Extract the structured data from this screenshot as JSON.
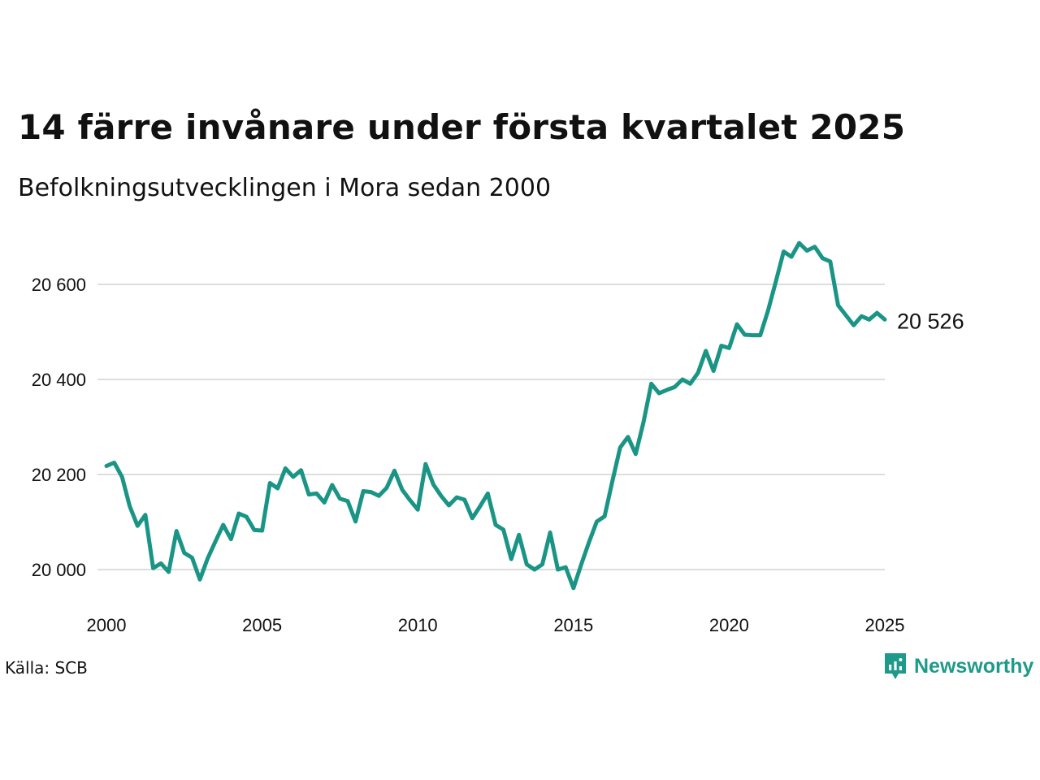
{
  "title": "14 färre invånare under första kvartalet 2025",
  "subtitle": "Befolkningsutvecklingen i Mora sedan 2000",
  "source": "Källa: SCB",
  "brand": {
    "name": "Newsworthy",
    "icon": "newsworthy-logo-icon",
    "color": "#1e9a8a"
  },
  "colors": {
    "line": "#1a9585",
    "grid": "#dddddd"
  },
  "chart_data": {
    "type": "line",
    "title": "14 färre invånare under första kvartalet 2025",
    "subtitle": "Befolkningsutvecklingen i Mora sedan 2000",
    "xlim": [
      2000,
      2025
    ],
    "ylim": [
      19950,
      20710
    ],
    "x_ticks": [
      2000,
      2005,
      2010,
      2015,
      2020,
      2025
    ],
    "x_tick_labels": [
      "2000",
      "2005",
      "2010",
      "2015",
      "2020",
      "2025"
    ],
    "y_ticks": [
      20000,
      20200,
      20400,
      20600
    ],
    "y_tick_labels": [
      "20 000",
      "20 200",
      "20 400",
      "20 600"
    ],
    "grid": "horizontal",
    "end_label": "20 526",
    "series": [
      {
        "x": [
          2000.0,
          2000.25,
          2000.5,
          2000.75,
          2001.0,
          2001.25,
          2001.5,
          2001.75,
          2002.0,
          2002.25,
          2002.5,
          2002.75,
          2003.0,
          2003.25,
          2003.5,
          2003.75,
          2004.0,
          2004.25,
          2004.5,
          2004.75,
          2005.0,
          2005.25,
          2005.5,
          2005.75,
          2006.0,
          2006.25,
          2006.5,
          2006.75,
          2007.0,
          2007.25,
          2007.5,
          2007.75,
          2008.0,
          2008.25,
          2008.5,
          2008.75,
          2009.0,
          2009.25,
          2009.5,
          2009.75,
          2010.0,
          2010.25,
          2010.5,
          2010.75,
          2011.0,
          2011.25,
          2011.5,
          2011.75,
          2012.0,
          2012.25,
          2012.5,
          2012.75,
          2013.0,
          2013.25,
          2013.5,
          2013.75,
          2014.0,
          2014.25,
          2014.5,
          2014.75,
          2015.0,
          2015.25,
          2015.5,
          2015.75,
          2016.0,
          2016.25,
          2016.5,
          2016.75,
          2017.0,
          2017.25,
          2017.5,
          2017.75,
          2018.0,
          2018.25,
          2018.5,
          2018.75,
          2019.0,
          2019.25,
          2019.5,
          2019.75,
          2020.0,
          2020.25,
          2020.5,
          2020.75,
          2021.0,
          2021.25,
          2021.5,
          2021.75,
          2022.0,
          2022.25,
          2022.5,
          2022.75,
          2023.0,
          2023.25,
          2023.5,
          2023.75,
          2024.0,
          2024.25,
          2024.5,
          2024.75,
          2025.0
        ],
        "values": [
          20218,
          20225,
          20195,
          20133,
          20092,
          20115,
          20003,
          20013,
          19995,
          20081,
          20035,
          20025,
          19979,
          20023,
          20059,
          20094,
          20064,
          20118,
          20111,
          20083,
          20082,
          20182,
          20171,
          20213,
          20195,
          20209,
          20158,
          20160,
          20141,
          20178,
          20149,
          20144,
          20101,
          20165,
          20163,
          20155,
          20172,
          20208,
          20168,
          20146,
          20126,
          20222,
          20179,
          20155,
          20135,
          20152,
          20147,
          20108,
          20133,
          20160,
          20094,
          20084,
          20022,
          20073,
          20011,
          20000,
          20011,
          20078,
          20000,
          20005,
          19961,
          20011,
          20058,
          20101,
          20112,
          20186,
          20257,
          20279,
          20243,
          20310,
          20391,
          20371,
          20378,
          20384,
          20400,
          20391,
          20414,
          20460,
          20418,
          20471,
          20466,
          20516,
          20494,
          20493,
          20493,
          20545,
          20606,
          20669,
          20658,
          20687,
          20671,
          20679,
          20655,
          20648,
          20556,
          20535,
          20514,
          20533,
          20526,
          20540,
          20526
        ]
      }
    ]
  }
}
